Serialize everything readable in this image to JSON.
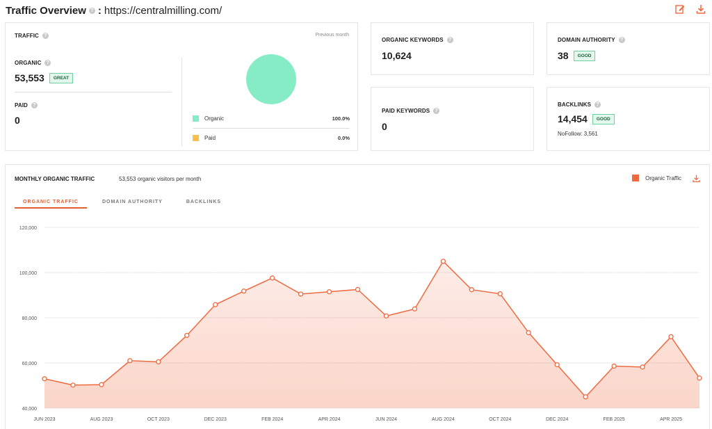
{
  "header": {
    "title": "Traffic Overview",
    "separator": ":",
    "domain": "https://centralmilling.com/"
  },
  "traffic": {
    "label": "TRAFFIC",
    "period": "Previous month",
    "organic_label": "ORGANIC",
    "organic_value": "53,553",
    "organic_badge": "GREAT",
    "paid_label": "PAID",
    "paid_value": "0",
    "legend": [
      {
        "name": "Organic",
        "pct": "100.0%",
        "color": "#86ecc6"
      },
      {
        "name": "Paid",
        "pct": "0.0%",
        "color": "#fbbf4d"
      }
    ]
  },
  "organic_keywords": {
    "label": "ORGANIC KEYWORDS",
    "value": "10,624"
  },
  "paid_keywords": {
    "label": "PAID KEYWORDS",
    "value": "0"
  },
  "domain_authority": {
    "label": "DOMAIN AUTHORITY",
    "value": "38",
    "badge": "GOOD"
  },
  "backlinks": {
    "label": "BACKLINKS",
    "value": "14,454",
    "badge": "GOOD",
    "nofollow": "NoFollow: 3,561"
  },
  "monthly": {
    "title": "MONTHLY ORGANIC TRAFFIC",
    "subtitle": "53,553 organic visitors per month",
    "legend": "Organic Traffic",
    "tabs": [
      "ORGANIC TRAFFIC",
      "DOMAIN AUTHORITY",
      "BACKLINKS"
    ]
  },
  "accent_color": "#ef6a3f",
  "chart_data": {
    "type": "area",
    "series": [
      {
        "name": "Organic Traffic",
        "values": [
          53000,
          50200,
          50400,
          61000,
          60500,
          72200,
          85800,
          91800,
          97600,
          90500,
          91500,
          92500,
          80800,
          83900,
          105000,
          92400,
          90600,
          73400,
          59200,
          45000,
          58600,
          58200,
          71600,
          53300
        ]
      }
    ],
    "x": [
      "JUN 2023",
      "JUL 2023",
      "AUG 2023",
      "SEP 2023",
      "OCT 2023",
      "NOV 2023",
      "DEC 2023",
      "JAN 2024",
      "FEB 2024",
      "MAR 2024",
      "APR 2024",
      "MAY 2024",
      "JUN 2024",
      "JUL 2024",
      "AUG 2024",
      "SEP 2024",
      "OCT 2024",
      "NOV 2024",
      "DEC 2024",
      "JAN 2025",
      "FEB 2025",
      "MAR 2025",
      "APR 2025",
      "MAY 2025"
    ],
    "xticks": [
      "JUN 2023",
      "AUG 2023",
      "OCT 2023",
      "DEC 2023",
      "FEB 2024",
      "APR 2024",
      "JUN 2024",
      "AUG 2024",
      "OCT 2024",
      "DEC 2024",
      "FEB 2025",
      "APR 2025"
    ],
    "yticks": [
      "40,000",
      "60,000",
      "80,000",
      "100,000",
      "120,000"
    ],
    "ylim": [
      40000,
      120000
    ],
    "grid": true
  }
}
